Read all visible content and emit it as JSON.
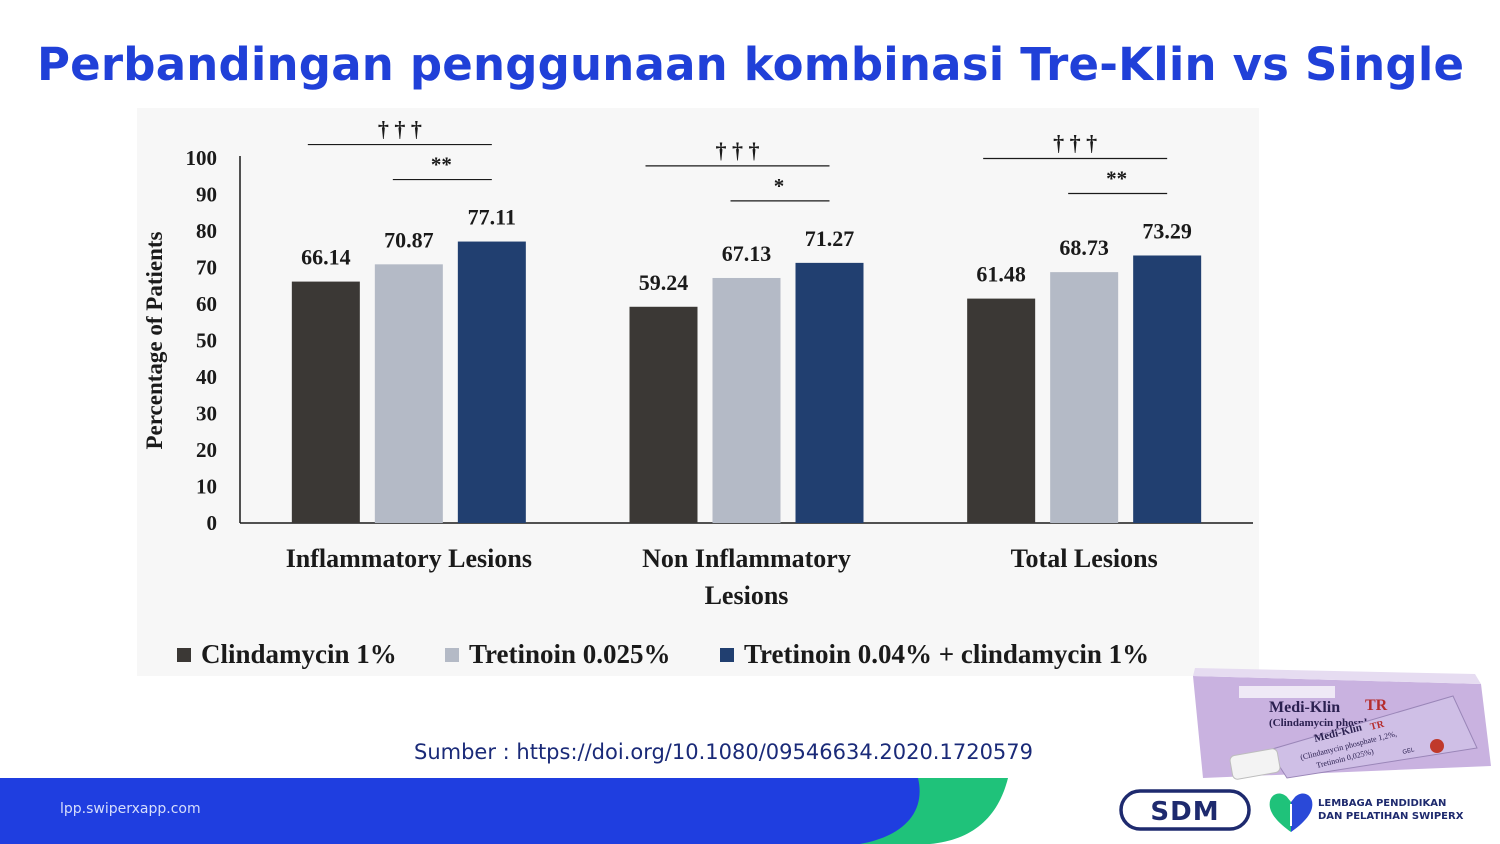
{
  "slide": {
    "title": "Perbandingan penggunaan kombinasi Tre-Klin vs Single",
    "source": "Sumber : https://doi.org/10.1080/09546634.2020.1720579",
    "footer_url": "lpp.swiperxapp.com",
    "brand_colors": {
      "title": "#2040d8",
      "footer_blue": "#1f3ee0",
      "footer_green": "#1fc27a"
    }
  },
  "chart_data": {
    "type": "bar",
    "title": "",
    "xlabel": "",
    "ylabel": "Percentage of Patients",
    "ylim": [
      0,
      100
    ],
    "yticks": [
      0,
      10,
      20,
      30,
      40,
      50,
      60,
      70,
      80,
      90,
      100
    ],
    "grid": false,
    "legend_position": "bottom",
    "categories": [
      [
        "Inflammatory Lesions"
      ],
      [
        "Non Inflammatory",
        "Lesions"
      ],
      [
        "Total Lesions"
      ]
    ],
    "series": [
      {
        "name": "Clindamycin 1%",
        "color": "#3b3835",
        "values": [
          66.14,
          59.24,
          61.48
        ],
        "labels": [
          "66.14",
          "59.24",
          "61.48"
        ]
      },
      {
        "name": "Tretinoin 0.025%",
        "color": "#b4bac6",
        "values": [
          70.87,
          67.13,
          68.73
        ],
        "labels": [
          "70.87",
          "67.13",
          "68.73"
        ]
      },
      {
        "name": "Tretinoin 0.04% + clindamycin 1%",
        "color": "#213f70",
        "values": [
          77.11,
          71.27,
          73.29
        ],
        "labels": [
          "77.11",
          "71.27",
          "73.29"
        ]
      }
    ],
    "annotations": [
      {
        "category": 0,
        "from_series": 0,
        "to_series": 2,
        "text": "† † †"
      },
      {
        "category": 0,
        "from_series": 1,
        "to_series": 2,
        "text": "**"
      },
      {
        "category": 1,
        "from_series": 0,
        "to_series": 2,
        "text": "† † †"
      },
      {
        "category": 1,
        "from_series": 1,
        "to_series": 2,
        "text": "*"
      },
      {
        "category": 2,
        "from_series": 0,
        "to_series": 2,
        "text": "† † †"
      },
      {
        "category": 2,
        "from_series": 1,
        "to_series": 2,
        "text": "**"
      }
    ]
  },
  "product_image": {
    "brand": "Medi-Klin",
    "variant": "TR",
    "box_line": "(Clindamycin phosphate 1,",
    "tube_lines": [
      "(Clindamycin phosphate 1,2%,",
      "Tretinoin 0,025%)"
    ],
    "tube_form": "GEL"
  },
  "logos": {
    "sdm": "SDM",
    "lp_line1": "LEMBAGA PENDIDIKAN",
    "lp_line2": "DAN PELATIHAN SWIPERX"
  }
}
